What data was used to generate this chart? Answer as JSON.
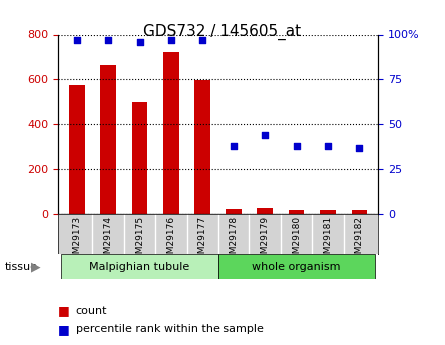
{
  "title": "GDS732 / 145605_at",
  "samples": [
    "GSM29173",
    "GSM29174",
    "GSM29175",
    "GSM29176",
    "GSM29177",
    "GSM29178",
    "GSM29179",
    "GSM29180",
    "GSM29181",
    "GSM29182"
  ],
  "counts": [
    575,
    665,
    500,
    720,
    595,
    20,
    25,
    18,
    18,
    18
  ],
  "percentiles": [
    97,
    97,
    96,
    97,
    97,
    38,
    44,
    38,
    38,
    37
  ],
  "groups": [
    "Malpighian tubule",
    "Malpighian tubule",
    "Malpighian tubule",
    "Malpighian tubule",
    "Malpighian tubule",
    "whole organism",
    "whole organism",
    "whole organism",
    "whole organism",
    "whole organism"
  ],
  "group_labels": [
    "Malpighian tubule",
    "whole organism"
  ],
  "group_colors": [
    "#90EE90",
    "#3CB371"
  ],
  "bar_color": "#CC0000",
  "dot_color": "#0000CC",
  "left_ylim": [
    0,
    800
  ],
  "right_ylim": [
    0,
    100
  ],
  "left_yticks": [
    0,
    200,
    400,
    600,
    800
  ],
  "right_yticks": [
    0,
    25,
    50,
    75,
    100
  ],
  "right_yticklabels": [
    "0",
    "25",
    "50",
    "75",
    "100%"
  ],
  "tissue_label": "tissue",
  "legend_count": "count",
  "legend_percentile": "percentile rank within the sample",
  "grid_color": "#000000",
  "tick_area_bg": "#D3D3D3",
  "group1_color": "#B8F0B8",
  "group2_color": "#5CD65C"
}
